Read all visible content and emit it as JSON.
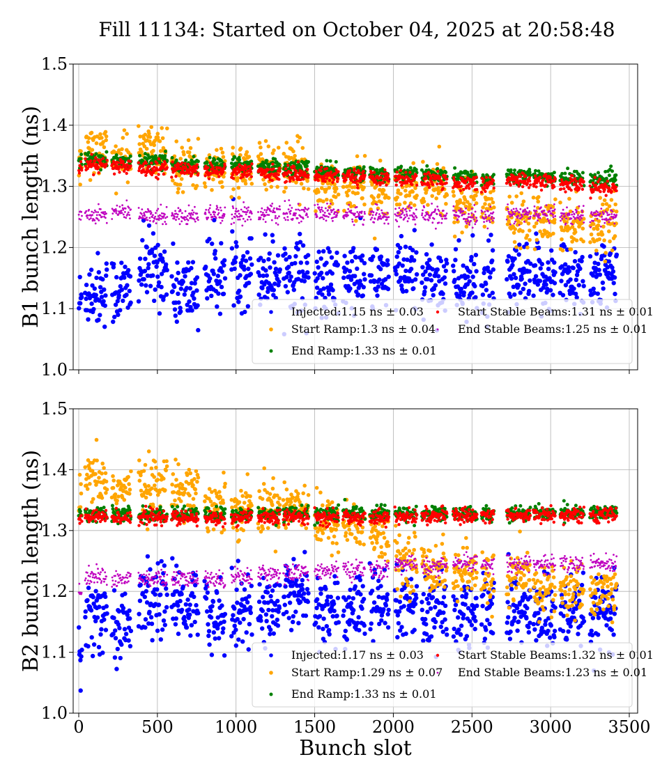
{
  "chart_data": {
    "title": "Fill 11134: Started on October 04, 2025 at 20:58:48",
    "xlabel": "Bunch slot",
    "shared_x": true,
    "grid": true,
    "legend_placement": "lower-right",
    "xlim": [
      -20,
      3550
    ],
    "xticks": [
      "0",
      "500",
      "1000",
      "1500",
      "2000",
      "2500",
      "3000",
      "3500"
    ],
    "trains": [
      [
        0,
        20
      ],
      [
        40,
        180
      ],
      [
        210,
        330
      ],
      [
        380,
        560
      ],
      [
        590,
        760
      ],
      [
        800,
        930
      ],
      [
        970,
        1100
      ],
      [
        1140,
        1280
      ],
      [
        1300,
        1460
      ],
      [
        1500,
        1650
      ],
      [
        1680,
        1820
      ],
      [
        1850,
        1970
      ],
      [
        2010,
        2150
      ],
      [
        2180,
        2340
      ],
      [
        2380,
        2530
      ],
      [
        2560,
        2640
      ],
      [
        2720,
        2870
      ],
      [
        2890,
        3030
      ],
      [
        3060,
        3210
      ],
      [
        3250,
        3420
      ]
    ],
    "panels": [
      {
        "type": "scatter",
        "ylabel": "B1 bunch length (ns)",
        "ylim": [
          1.0,
          1.5
        ],
        "yticks": [
          "1.0",
          "1.1",
          "1.2",
          "1.3",
          "1.4",
          "1.5"
        ],
        "series": [
          {
            "name": "Injected:1.15 ns ± 0.03",
            "color": "#0000ff",
            "spread": 0.03,
            "train_means": [
              1.11,
              1.13,
              1.13,
              1.165,
              1.13,
              1.155,
              1.165,
              1.16,
              1.16,
              1.14,
              1.15,
              1.15,
              1.155,
              1.15,
              1.14,
              1.14,
              1.145,
              1.15,
              1.155,
              1.15
            ]
          },
          {
            "name": "Start Ramp:1.3 ns ± 0.04",
            "color": "#ffa500",
            "spread": 0.02,
            "train_means": [
              1.34,
              1.36,
              1.345,
              1.36,
              1.335,
              1.325,
              1.33,
              1.33,
              1.33,
              1.3,
              1.3,
              1.29,
              1.29,
              1.3,
              1.27,
              1.27,
              1.25,
              1.25,
              1.24,
              1.24
            ]
          },
          {
            "name": "End Ramp:1.33 ns ± 0.01",
            "color": "#008000",
            "spread": 0.006,
            "train_means": [
              1.34,
              1.345,
              1.34,
              1.34,
              1.335,
              1.335,
              1.335,
              1.333,
              1.33,
              1.325,
              1.323,
              1.32,
              1.32,
              1.318,
              1.315,
              1.313,
              1.318,
              1.315,
              1.313,
              1.31
            ]
          },
          {
            "name": "Start Stable Beams:1.31 ns ± 0.01",
            "color": "#ff0000",
            "spread": 0.006,
            "train_means": [
              1.33,
              1.335,
              1.333,
              1.33,
              1.328,
              1.326,
              1.325,
              1.322,
              1.32,
              1.318,
              1.316,
              1.314,
              1.312,
              1.31,
              1.306,
              1.304,
              1.31,
              1.308,
              1.304,
              1.298
            ]
          },
          {
            "name": "End Stable Beams:1.25 ns ± 0.01",
            "color": "#bf00bf",
            "spread": 0.007,
            "train_means": [
              1.25,
              1.255,
              1.258,
              1.252,
              1.253,
              1.256,
              1.255,
              1.256,
              1.255,
              1.256,
              1.254,
              1.252,
              1.254,
              1.252,
              1.25,
              1.25,
              1.255,
              1.255,
              1.252,
              1.25
            ]
          }
        ]
      },
      {
        "type": "scatter",
        "ylabel": "B2 bunch length (ns)",
        "ylim": [
          1.0,
          1.5
        ],
        "yticks": [
          "1.0",
          "1.1",
          "1.2",
          "1.3",
          "1.4",
          "1.5"
        ],
        "series": [
          {
            "name": "Injected:1.17 ns ± 0.03",
            "color": "#0000ff",
            "spread": 0.03,
            "train_means": [
              1.1,
              1.155,
              1.145,
              1.185,
              1.18,
              1.165,
              1.17,
              1.17,
              1.2,
              1.17,
              1.17,
              1.175,
              1.18,
              1.165,
              1.16,
              1.17,
              1.17,
              1.16,
              1.155,
              1.16
            ]
          },
          {
            "name": "Start Ramp:1.29 ns ± 0.07",
            "color": "#ffa500",
            "spread": 0.022,
            "train_means": [
              1.35,
              1.38,
              1.365,
              1.375,
              1.37,
              1.34,
              1.34,
              1.34,
              1.345,
              1.31,
              1.31,
              1.29,
              1.25,
              1.24,
              1.23,
              1.22,
              1.22,
              1.205,
              1.2,
              1.2
            ]
          },
          {
            "name": "End Ramp:1.33 ns ± 0.01",
            "color": "#008000",
            "spread": 0.006,
            "train_means": [
              1.325,
              1.327,
              1.326,
              1.326,
              1.326,
              1.326,
              1.326,
              1.327,
              1.328,
              1.327,
              1.328,
              1.327,
              1.327,
              1.328,
              1.328,
              1.328,
              1.328,
              1.329,
              1.329,
              1.33
            ]
          },
          {
            "name": "Start Stable Beams:1.32 ns ± 0.01",
            "color": "#ff0000",
            "spread": 0.006,
            "train_means": [
              1.318,
              1.322,
              1.322,
              1.322,
              1.32,
              1.32,
              1.32,
              1.322,
              1.322,
              1.322,
              1.322,
              1.322,
              1.322,
              1.324,
              1.325,
              1.325,
              1.325,
              1.326,
              1.325,
              1.326
            ]
          },
          {
            "name": "End Stable Beams:1.23 ns ± 0.01",
            "color": "#bf00bf",
            "spread": 0.007,
            "train_means": [
              1.2,
              1.225,
              1.22,
              1.22,
              1.22,
              1.22,
              1.225,
              1.23,
              1.23,
              1.235,
              1.235,
              1.235,
              1.245,
              1.24,
              1.245,
              1.245,
              1.245,
              1.245,
              1.245,
              1.245
            ]
          }
        ]
      }
    ]
  }
}
